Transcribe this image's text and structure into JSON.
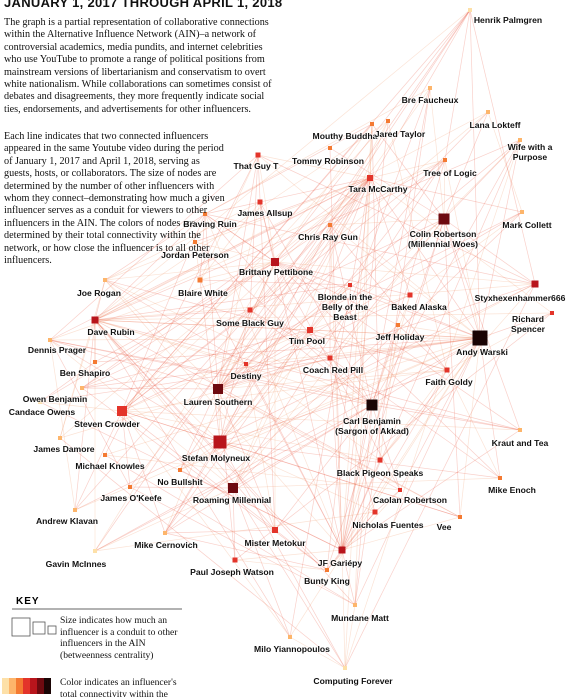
{
  "header": {
    "title": "JANUARY 1, 2017 THROUGH APRIL 1, 2018"
  },
  "intro": {
    "paragraphs": [
      "The graph is a partial representation of collaborative connections within the Alternative Influence Network (AIN)–a network of controversial academics, media pundits, and internet celebrities who use YouTube to promote a range of political positions from mainstream versions of libertarianism and conservatism to overt white nationalism. While collaborations can sometimes consist of debates and disagreements, they more frequently indicate social ties, endorsements, and advertisements for other influencers.",
      "Each line indicates that two connected influencers appeared in the same Youtube video during the period of January 1, 2017 and April 1, 2018, serving as guests, hosts, or collaborators. The size of nodes are determined by the number of other influencers with whom they connect–demonstrating how much a given influencer serves as a conduit for viewers to other influencers in the AIN. The colors of nodes are determined by their total connectivity within the network, or how close the influencer is to all other influencers."
    ]
  },
  "nodes": [
    {
      "label": "Henrik Palmgren"
    },
    {
      "label": "Bre Faucheux"
    },
    {
      "label": "Lana Lokteff"
    },
    {
      "label": "Mouthy Buddha"
    },
    {
      "label": "Jared Taylor"
    },
    {
      "label": "Wife with a Purpose"
    },
    {
      "label": "That Guy T"
    },
    {
      "label": "Tommy Robinson"
    },
    {
      "label": "Tree of Logic"
    },
    {
      "label": "Tara McCarthy"
    },
    {
      "label": "James Allsup"
    },
    {
      "label": "Braving Ruin"
    },
    {
      "label": "Mark Collett"
    },
    {
      "label": "Chris Ray Gun"
    },
    {
      "label": "Colin Robertson\n(Millennial Woes)"
    },
    {
      "label": "Jordan Peterson"
    },
    {
      "label": "Brittany Pettibone"
    },
    {
      "label": "Blonde in the\nBelly of the\nBeast"
    },
    {
      "label": "Joe Rogan"
    },
    {
      "label": "Blaire White"
    },
    {
      "label": "Baked Alaska"
    },
    {
      "label": "Styxhexenhammer666"
    },
    {
      "label": "Some Black Guy"
    },
    {
      "label": "Richard Spencer"
    },
    {
      "label": "Dave Rubin"
    },
    {
      "label": "Tim Pool"
    },
    {
      "label": "Jeff Holiday"
    },
    {
      "label": "Andy Warski"
    },
    {
      "label": "Dennis Prager"
    },
    {
      "label": "Coach Red Pill"
    },
    {
      "label": "Ben Shapiro"
    },
    {
      "label": "Destiny"
    },
    {
      "label": "Faith Goldy"
    },
    {
      "label": "Owen Benjamin"
    },
    {
      "label": "Candace Owens"
    },
    {
      "label": "Lauren Southern"
    },
    {
      "label": "Carl Benjamin\n(Sargon of Akkad)"
    },
    {
      "label": "Steven Crowder"
    },
    {
      "label": "Kraut and Tea"
    },
    {
      "label": "James Damore"
    },
    {
      "label": "Stefan Molyneux"
    },
    {
      "label": "Michael Knowles"
    },
    {
      "label": "Black Pigeon Speaks"
    },
    {
      "label": "No Bullshit"
    },
    {
      "label": "Roaming Millennial"
    },
    {
      "label": "Mike Enoch"
    },
    {
      "label": "James O'Keefe"
    },
    {
      "label": "Caolan Robertson"
    },
    {
      "label": "Andrew Klavan"
    },
    {
      "label": "Mister Metokur"
    },
    {
      "label": "Nicholas Fuentes"
    },
    {
      "label": "Vee"
    },
    {
      "label": "Mike Cernovich"
    },
    {
      "label": "JF Gariépy"
    },
    {
      "label": "Gavin McInnes"
    },
    {
      "label": "Paul Joseph Watson"
    },
    {
      "label": "Bunty King"
    },
    {
      "label": "Mundane Matt"
    },
    {
      "label": "Milo Yiannopoulos"
    },
    {
      "label": "Computing Forever"
    }
  ],
  "key": {
    "title": "KEY",
    "size_text": "Size indicates how much an influencer is a conduit to other influencers in the AIN (betweenness centrality)",
    "color_text": "Color indicates an influencer's total connectivity within the network, or"
  }
}
